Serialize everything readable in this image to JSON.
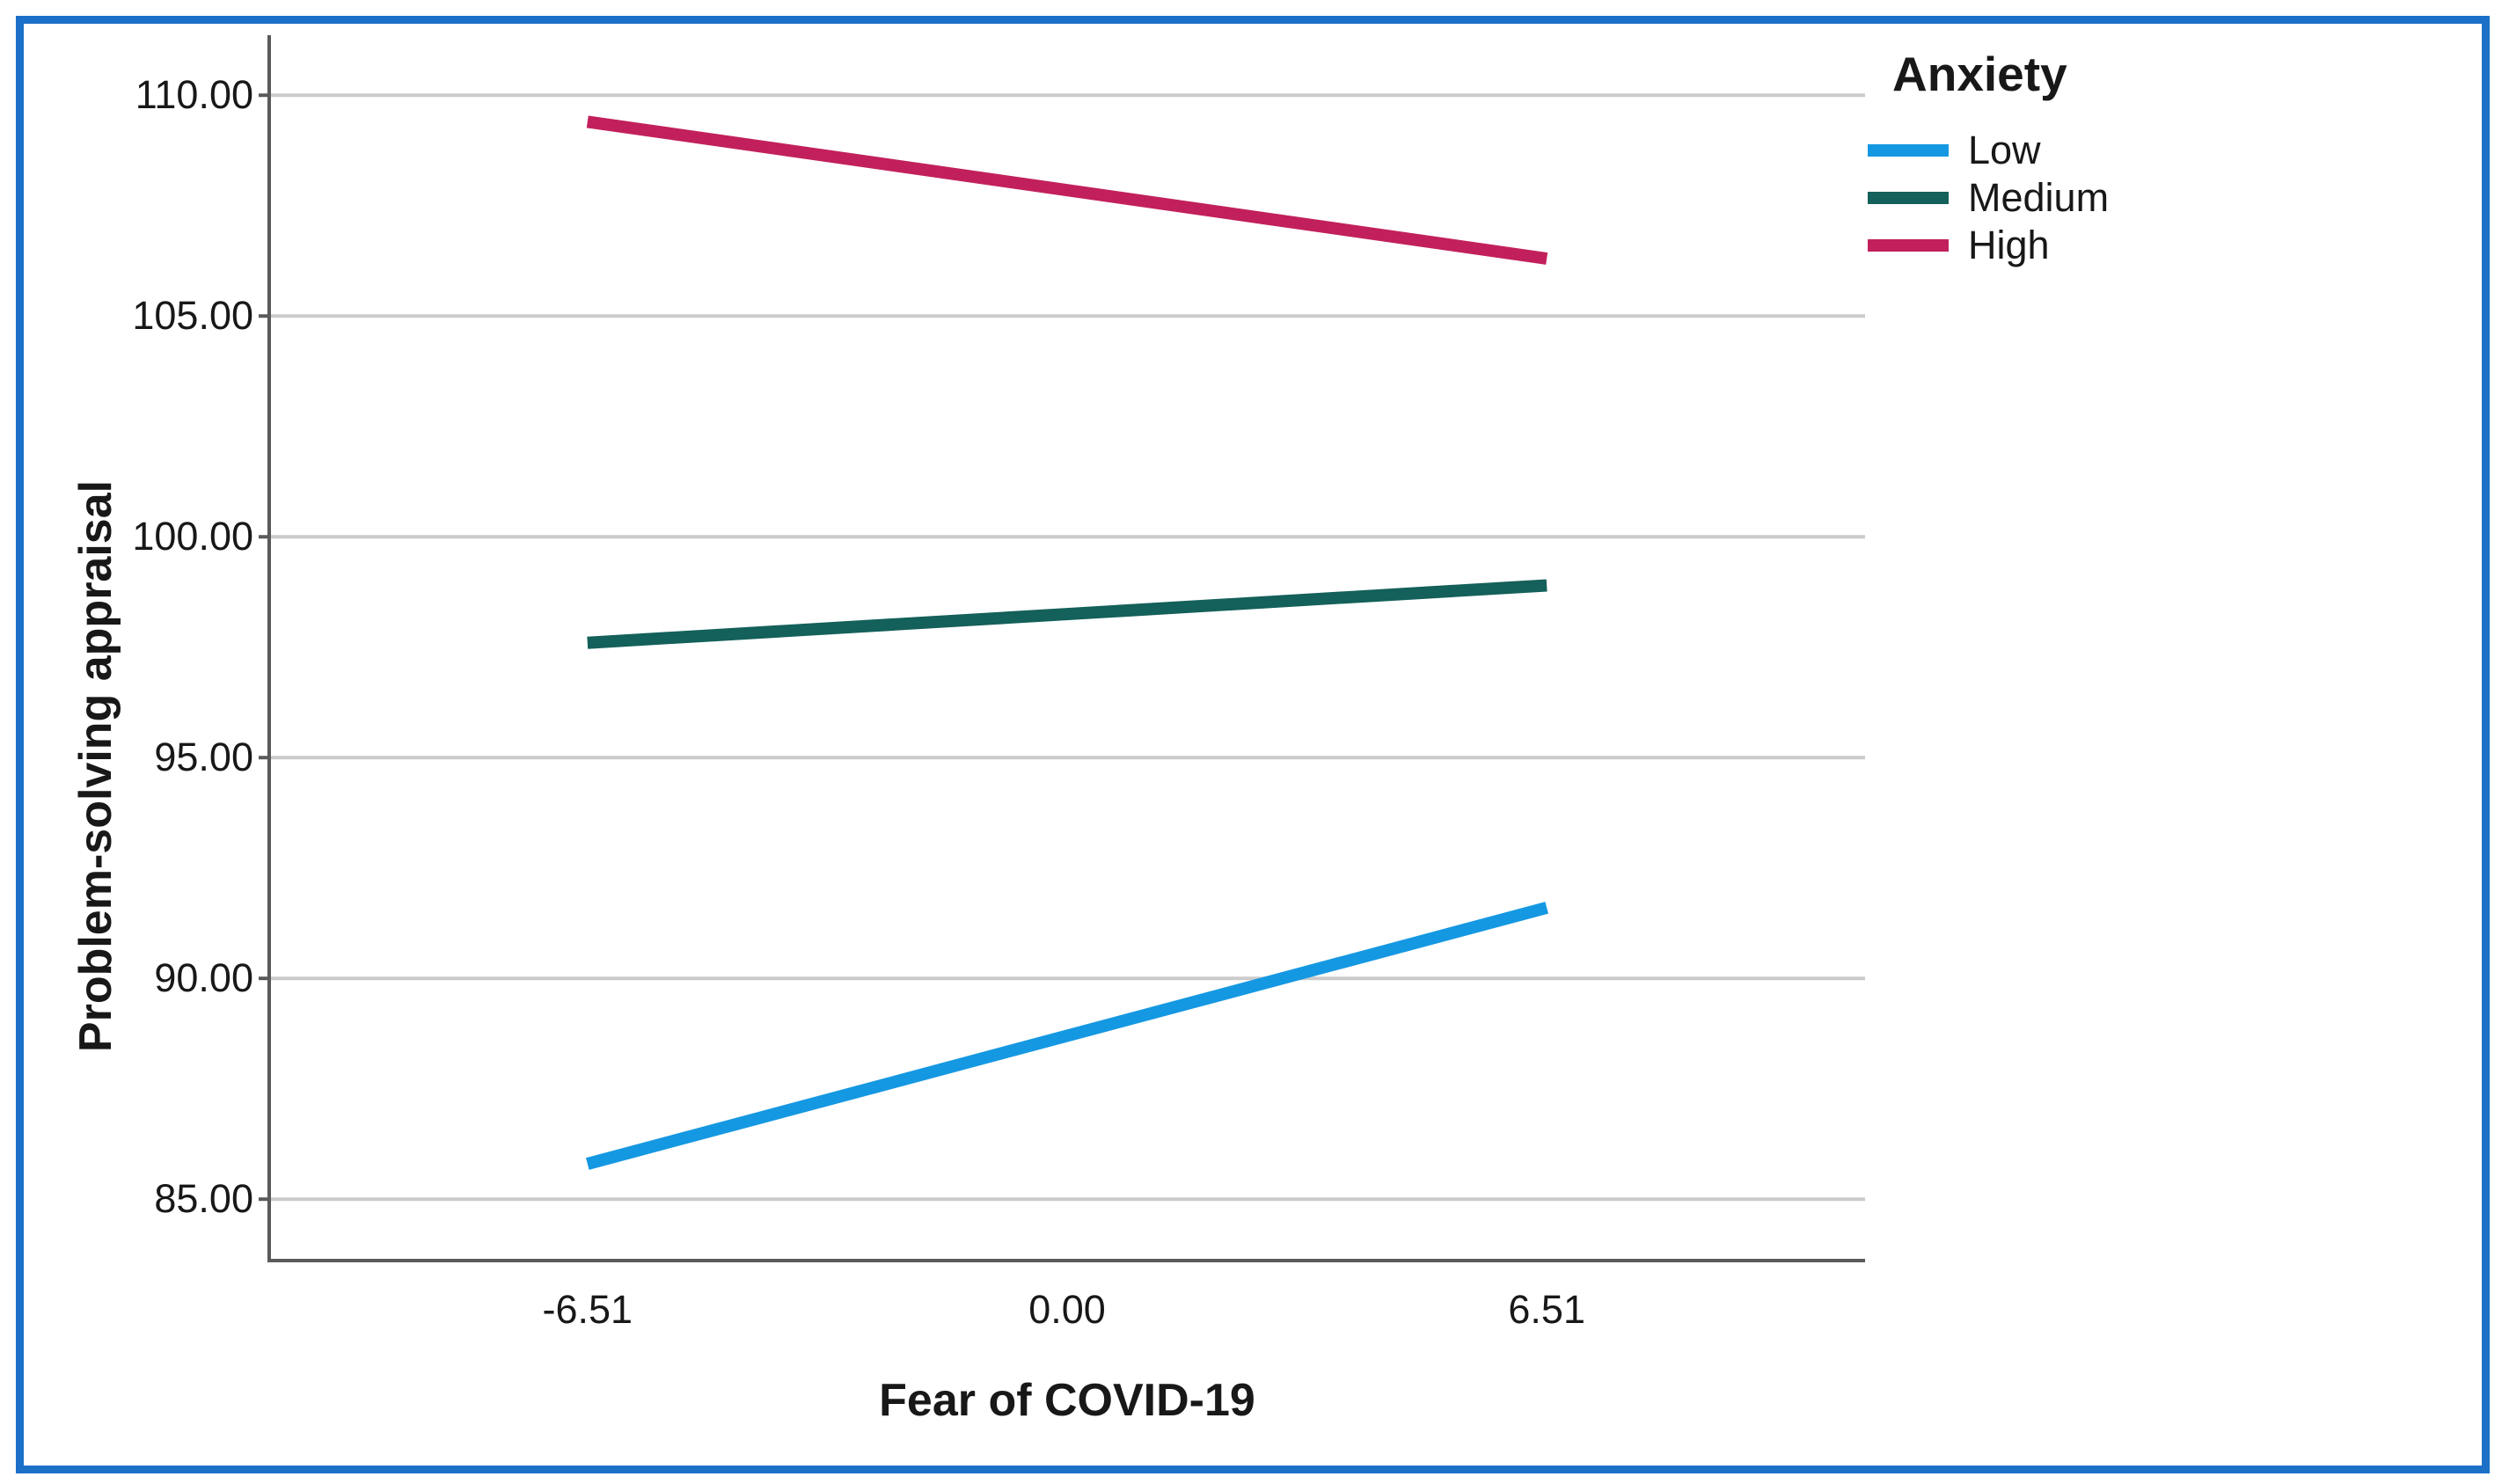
{
  "frame": {
    "border_color": "#1C70C8",
    "background_color": "#FFFFFF"
  },
  "chart_data": {
    "type": "line",
    "title": "",
    "xlabel": "Fear of COVID-19",
    "ylabel": "Problem-solving appraisal",
    "x_tick_values": [
      -6.51,
      0,
      6.51
    ],
    "x_tick_labels": [
      "-6.51",
      "0.00",
      "6.51"
    ],
    "y_tick_values": [
      85,
      90,
      95,
      100,
      105,
      110
    ],
    "y_tick_labels": [
      "85.00",
      "90.00",
      "95.00",
      "100.00",
      "105.00",
      "110.00"
    ],
    "xlim": [
      -10.83,
      10.83
    ],
    "ylim": [
      83.57,
      111.36
    ],
    "grid": "horizontal",
    "axis_color": "#5A5A5A",
    "grid_color": "#CBCBCB",
    "text_color": "#181818",
    "legend": {
      "title": "Anxiety",
      "position": "top-right"
    },
    "series": [
      {
        "name": "Low",
        "color": "#1598E2",
        "x": [
          -6.51,
          6.51
        ],
        "y": [
          85.8,
          91.6
        ]
      },
      {
        "name": "Medium",
        "color": "#14605A",
        "x": [
          -6.51,
          6.51
        ],
        "y": [
          97.6,
          98.9
        ]
      },
      {
        "name": "High",
        "color": "#C2205C",
        "x": [
          -6.51,
          6.51
        ],
        "y": [
          109.4,
          106.3
        ]
      }
    ]
  }
}
